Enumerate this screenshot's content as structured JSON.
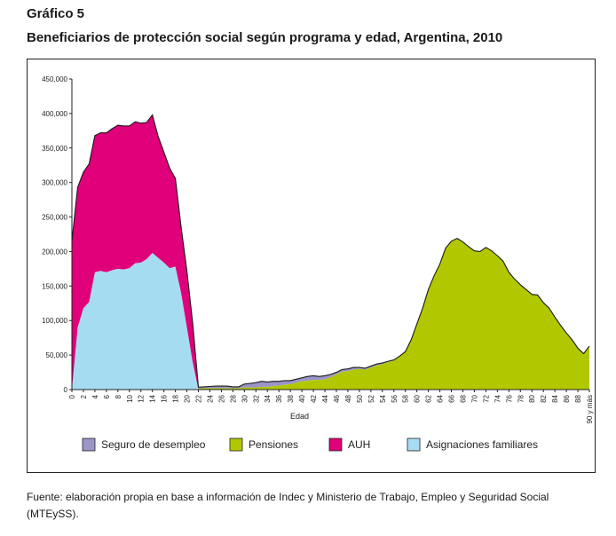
{
  "figure": {
    "label": "Gráfico 5",
    "title": "Beneficiarios de protección social según programa y edad, Argentina, 2010",
    "source": "Fuente: elaboración propia en base a información de Indec y Ministerio de Trabajo, Empleo y Seguridad Social (MTEySS)."
  },
  "chart_data": {
    "type": "area",
    "stacked": true,
    "xlabel": "Edad",
    "ylabel": "",
    "ylim": [
      0,
      450000
    ],
    "y_ticks": [
      0,
      50000,
      100000,
      150000,
      200000,
      250000,
      300000,
      350000,
      400000,
      450000
    ],
    "y_tick_labels": [
      "0",
      "50,000",
      "100,000",
      "150,000",
      "200,000",
      "250,000",
      "300,000",
      "350,000",
      "400,000",
      "450,000"
    ],
    "x_tick_labels": [
      "0",
      "2",
      "4",
      "6",
      "8",
      "10",
      "12",
      "14",
      "16",
      "18",
      "20",
      "22",
      "24",
      "26",
      "28",
      "30",
      "32",
      "34",
      "36",
      "38",
      "40",
      "42",
      "44",
      "46",
      "48",
      "50",
      "52",
      "54",
      "56",
      "58",
      "60",
      "62",
      "64",
      "66",
      "68",
      "70",
      "72",
      "74",
      "76",
      "78",
      "80",
      "82",
      "84",
      "86",
      "88",
      "90 y más"
    ],
    "grid": false,
    "legend_position": "bottom",
    "x": [
      0,
      1,
      2,
      3,
      4,
      5,
      6,
      7,
      8,
      9,
      10,
      11,
      12,
      13,
      14,
      15,
      16,
      17,
      18,
      19,
      20,
      21,
      22,
      23,
      24,
      25,
      26,
      27,
      28,
      29,
      30,
      31,
      32,
      33,
      34,
      35,
      36,
      37,
      38,
      39,
      40,
      41,
      42,
      43,
      44,
      45,
      46,
      47,
      48,
      49,
      50,
      51,
      52,
      53,
      54,
      55,
      56,
      57,
      58,
      59,
      60,
      61,
      62,
      63,
      64,
      65,
      66,
      67,
      68,
      69,
      70,
      71,
      72,
      73,
      74,
      75,
      76,
      77,
      78,
      79,
      80,
      81,
      82,
      83,
      84,
      85,
      86,
      87,
      88,
      89,
      90
    ],
    "series": [
      {
        "name": "Asignaciones familiares",
        "color": "#a6dcf2",
        "values": [
          0,
          90000,
          118000,
          127000,
          170000,
          172000,
          170000,
          173000,
          175000,
          174000,
          176000,
          183000,
          184000,
          189000,
          198000,
          191000,
          184000,
          176000,
          178000,
          140000,
          90000,
          40000,
          0,
          0,
          0,
          0,
          0,
          0,
          0,
          0,
          0,
          0,
          0,
          0,
          0,
          0,
          0,
          0,
          0,
          0,
          0,
          0,
          0,
          0,
          0,
          0,
          0,
          0,
          0,
          0,
          0,
          0,
          0,
          0,
          0,
          0,
          0,
          0,
          0,
          0,
          0,
          0,
          0,
          0,
          0,
          0,
          0,
          0,
          0,
          0,
          0,
          0,
          0,
          0,
          0,
          0,
          0,
          0,
          0,
          0,
          0,
          0,
          0,
          0,
          0,
          0,
          0,
          0,
          0,
          0,
          0
        ]
      },
      {
        "name": "AUH",
        "color": "#e0007a",
        "values": [
          215000,
          203000,
          197000,
          200000,
          198000,
          200000,
          202000,
          205000,
          208000,
          208000,
          206000,
          205000,
          202000,
          198000,
          200000,
          176000,
          160000,
          145000,
          128000,
          95000,
          82000,
          57000,
          0,
          0,
          0,
          0,
          0,
          0,
          0,
          0,
          0,
          0,
          0,
          0,
          0,
          0,
          0,
          0,
          0,
          0,
          0,
          0,
          0,
          0,
          0,
          0,
          0,
          0,
          0,
          0,
          0,
          0,
          0,
          0,
          0,
          0,
          0,
          0,
          0,
          0,
          0,
          0,
          0,
          0,
          0,
          0,
          0,
          0,
          0,
          0,
          0,
          0,
          0,
          0,
          0,
          0,
          0,
          0,
          0,
          0,
          0,
          0,
          0,
          0,
          0,
          0,
          0,
          0,
          0,
          0,
          0
        ]
      },
      {
        "name": "Pensiones",
        "color": "#b1c800",
        "values": [
          0,
          0,
          0,
          0,
          0,
          0,
          0,
          0,
          0,
          0,
          0,
          0,
          0,
          0,
          0,
          0,
          0,
          0,
          0,
          0,
          0,
          0,
          2000,
          2000,
          2000,
          2000,
          2000,
          2000,
          2000,
          2000,
          3000,
          3000,
          3000,
          4000,
          4000,
          5000,
          6000,
          7000,
          8000,
          10000,
          12000,
          13000,
          14000,
          14000,
          15000,
          18000,
          22000,
          26000,
          27000,
          29000,
          30000,
          29000,
          32000,
          35000,
          37000,
          40000,
          42000,
          48000,
          55000,
          72000,
          95000,
          118000,
          145000,
          165000,
          182000,
          205000,
          215000,
          219000,
          214000,
          207000,
          201000,
          200000,
          206000,
          201000,
          194000,
          186000,
          170000,
          160000,
          152000,
          145000,
          138000,
          137000,
          126000,
          118000,
          105000,
          93000,
          82000,
          72000,
          60000,
          52000,
          63000
        ]
      },
      {
        "name": "Seguro de desempleo",
        "color": "#9b95c8",
        "values": [
          0,
          0,
          0,
          0,
          0,
          0,
          0,
          0,
          0,
          0,
          0,
          0,
          0,
          0,
          0,
          0,
          0,
          0,
          0,
          0,
          0,
          0,
          1500,
          2000,
          2500,
          3000,
          3000,
          3000,
          2000,
          2000,
          5000,
          6000,
          7000,
          8000,
          7000,
          7000,
          6000,
          6000,
          5000,
          5000,
          5000,
          6000,
          6000,
          5000,
          5000,
          4000,
          3000,
          3000,
          3000,
          3000,
          2000,
          2000,
          2000,
          2000,
          1500,
          1000,
          1000,
          500,
          0,
          0,
          0,
          0,
          0,
          0,
          0,
          0,
          0,
          0,
          0,
          0,
          0,
          0,
          0,
          0,
          0,
          0,
          0,
          0,
          0,
          0,
          0,
          0,
          0,
          0,
          0,
          0,
          0,
          0,
          0,
          0,
          0
        ]
      }
    ],
    "legend": [
      {
        "label": "Seguro de desempleo",
        "color": "#9b95c8"
      },
      {
        "label": "Pensiones",
        "color": "#b1c800"
      },
      {
        "label": "AUH",
        "color": "#e0007a"
      },
      {
        "label": "Asignaciones familiares",
        "color": "#a6dcf2"
      }
    ]
  }
}
